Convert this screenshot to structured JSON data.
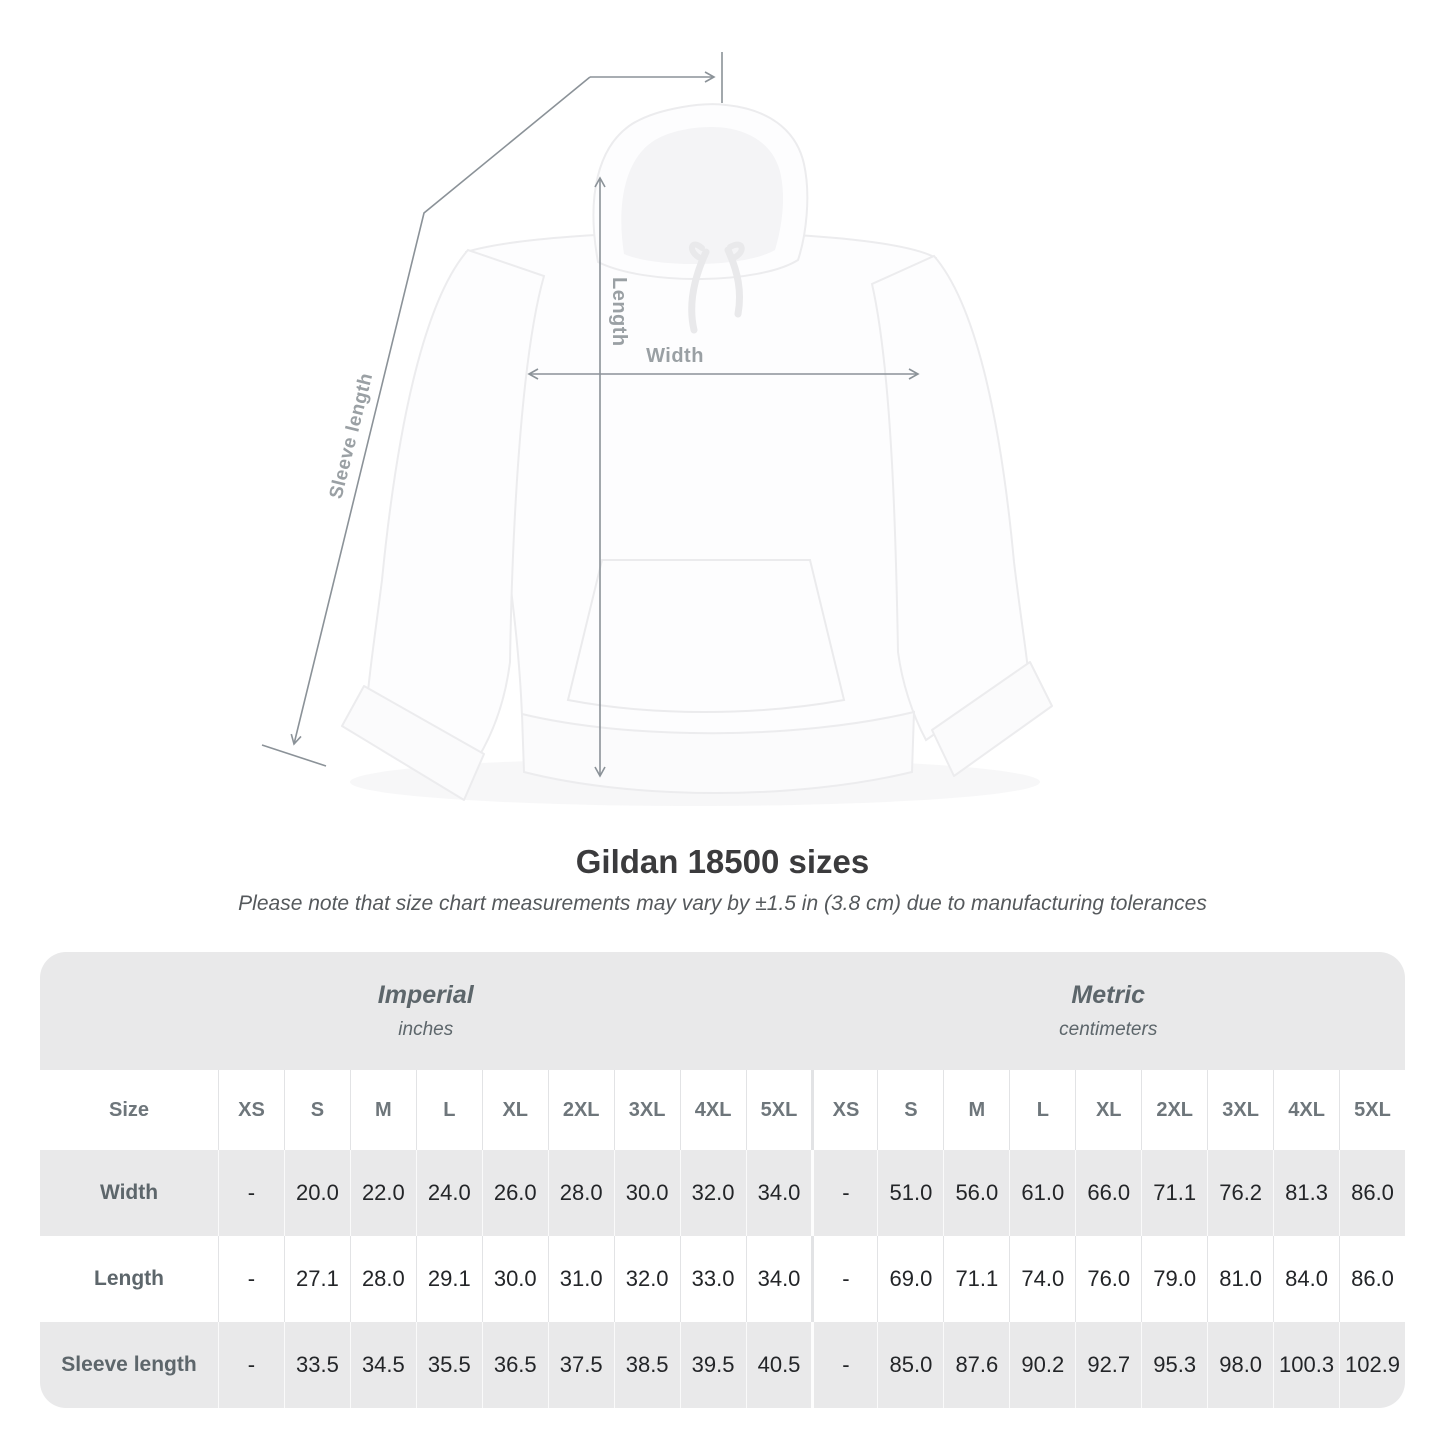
{
  "title": "Gildan 18500 sizes",
  "subtitle": "Please note that size chart measurements may vary by ±1.5 in (3.8 cm) due to manufacturing tolerances",
  "diagram": {
    "sleeve_label": "Sleeve length",
    "length_label": "Length",
    "width_label": "Width"
  },
  "table": {
    "sections": [
      {
        "label": "Imperial",
        "sublabel": "inches"
      },
      {
        "label": "Metric",
        "sublabel": "centimeters"
      }
    ],
    "size_header": "Size",
    "sizes": [
      "XS",
      "S",
      "M",
      "L",
      "XL",
      "2XL",
      "3XL",
      "4XL",
      "5XL"
    ],
    "rows": [
      {
        "label": "Width",
        "imperial": [
          "-",
          "20.0",
          "22.0",
          "24.0",
          "26.0",
          "28.0",
          "30.0",
          "32.0",
          "34.0"
        ],
        "metric": [
          "-",
          "51.0",
          "56.0",
          "61.0",
          "66.0",
          "71.1",
          "76.2",
          "81.3",
          "86.0"
        ]
      },
      {
        "label": "Length",
        "imperial": [
          "-",
          "27.1",
          "28.0",
          "29.1",
          "30.0",
          "31.0",
          "32.0",
          "33.0",
          "34.0"
        ],
        "metric": [
          "-",
          "69.0",
          "71.1",
          "74.0",
          "76.0",
          "79.0",
          "81.0",
          "84.0",
          "86.0"
        ]
      },
      {
        "label": "Sleeve length",
        "imperial": [
          "-",
          "33.5",
          "34.5",
          "35.5",
          "36.5",
          "37.5",
          "38.5",
          "39.5",
          "40.5"
        ],
        "metric": [
          "-",
          "85.0",
          "87.6",
          "90.2",
          "92.7",
          "95.3",
          "98.0",
          "100.3",
          "102.9"
        ]
      }
    ]
  },
  "colors": {
    "measure_line": "#8b9298",
    "measure_label": "#9aa0a4",
    "row_shade": "#e9e9ea",
    "title_text": "#3b3b3d",
    "value_text": "#232528"
  }
}
